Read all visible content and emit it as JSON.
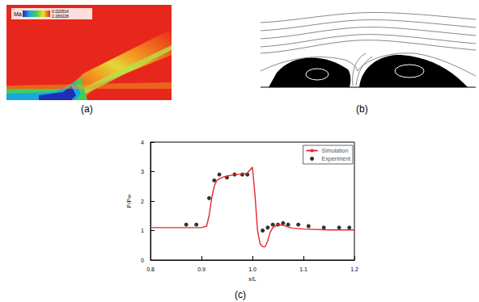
{
  "panels": {
    "a": {
      "label": "(a)",
      "colorbar": {
        "title": "Ma",
        "min_label": "0.020514",
        "max_label": "2.283228"
      }
    },
    "b": {
      "label": "(b)"
    },
    "c": {
      "label": "(c)"
    }
  },
  "chart_data": {
    "type": "line",
    "x_label": "x/L",
    "y_label": "P/P∞",
    "xlim": [
      0.8,
      1.2
    ],
    "xticks": [
      {
        "value": 0.8,
        "label": "0.8"
      },
      {
        "value": 0.9,
        "label": "0.9"
      },
      {
        "value": 1,
        "label": "1.0"
      },
      {
        "value": 1.1,
        "label": "1.1"
      },
      {
        "value": 1.2,
        "label": "1.2"
      }
    ],
    "ylim": [
      0,
      4
    ],
    "yticks": [
      0,
      1,
      2,
      3,
      4
    ],
    "grid": false,
    "legend": "upper right",
    "series": [
      {
        "name": "Simulation",
        "type": "line",
        "color": "#e8262a",
        "line_style": "solid",
        "marker": "none",
        "x": [
          0.8,
          0.85,
          0.9,
          0.91,
          0.915,
          0.92,
          0.925,
          0.93,
          0.94,
          0.95,
          0.96,
          0.97,
          0.98,
          0.99,
          0.995,
          1.0,
          1.005,
          1.01,
          1.015,
          1.02,
          1.025,
          1.03,
          1.035,
          1.04,
          1.05,
          1.06,
          1.07,
          1.08,
          1.1,
          1.15,
          1.2
        ],
        "values": [
          1.1,
          1.1,
          1.1,
          1.15,
          1.5,
          2.1,
          2.5,
          2.7,
          2.8,
          2.85,
          2.88,
          2.9,
          2.92,
          2.95,
          3.05,
          3.15,
          2.2,
          1.0,
          0.55,
          0.45,
          0.45,
          0.65,
          0.95,
          1.1,
          1.2,
          1.18,
          1.12,
          1.08,
          1.05,
          1.02,
          1.02
        ]
      },
      {
        "name": "Experiment",
        "type": "scatter",
        "color": "#000000",
        "marker": "circle",
        "x": [
          0.87,
          0.89,
          0.915,
          0.925,
          0.935,
          0.95,
          0.965,
          0.98,
          0.99,
          1.02,
          1.03,
          1.04,
          1.05,
          1.06,
          1.07,
          1.09,
          1.11,
          1.14,
          1.17,
          1.19
        ],
        "values": [
          1.2,
          1.2,
          2.1,
          2.7,
          2.9,
          2.8,
          2.9,
          2.9,
          2.9,
          1.0,
          1.1,
          1.2,
          1.2,
          1.25,
          1.2,
          1.2,
          1.15,
          1.1,
          1.1,
          1.1
        ]
      }
    ]
  }
}
